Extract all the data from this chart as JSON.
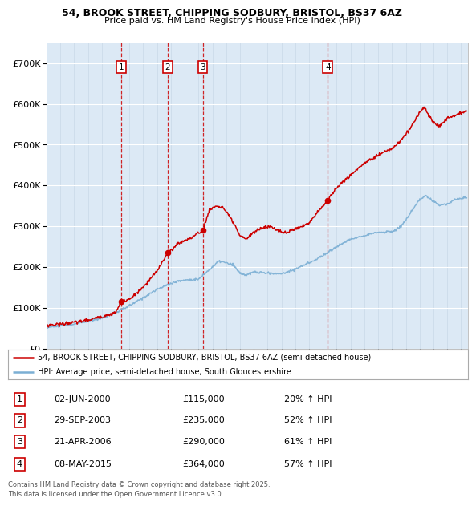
{
  "title_line1": "54, BROOK STREET, CHIPPING SODBURY, BRISTOL, BS37 6AZ",
  "title_line2": "Price paid vs. HM Land Registry's House Price Index (HPI)",
  "legend_line1": "54, BROOK STREET, CHIPPING SODBURY, BRISTOL, BS37 6AZ (semi-detached house)",
  "legend_line2": "HPI: Average price, semi-detached house, South Gloucestershire",
  "footer": "Contains HM Land Registry data © Crown copyright and database right 2025.\nThis data is licensed under the Open Government Licence v3.0.",
  "transactions": [
    {
      "num": 1,
      "date": "02-JUN-2000",
      "date_val": 2000.42,
      "price": 115000,
      "hpi_pct": "20% ↑ HPI"
    },
    {
      "num": 2,
      "date": "29-SEP-2003",
      "date_val": 2003.75,
      "price": 235000,
      "hpi_pct": "52% ↑ HPI"
    },
    {
      "num": 3,
      "date": "21-APR-2006",
      "date_val": 2006.3,
      "price": 290000,
      "hpi_pct": "61% ↑ HPI"
    },
    {
      "num": 4,
      "date": "08-MAY-2015",
      "date_val": 2015.35,
      "price": 364000,
      "hpi_pct": "57% ↑ HPI"
    }
  ],
  "price_color": "#cc0000",
  "hpi_color": "#7bafd4",
  "dashed_color": "#cc0000",
  "plot_bg": "#dce9f5",
  "ylim": [
    0,
    750000
  ],
  "xlim_start": 1995.0,
  "xlim_end": 2025.5,
  "yticks": [
    0,
    100000,
    200000,
    300000,
    400000,
    500000,
    600000,
    700000
  ],
  "ytick_labels": [
    "£0",
    "£100K",
    "£200K",
    "£300K",
    "£400K",
    "£500K",
    "£600K",
    "£700K"
  ]
}
